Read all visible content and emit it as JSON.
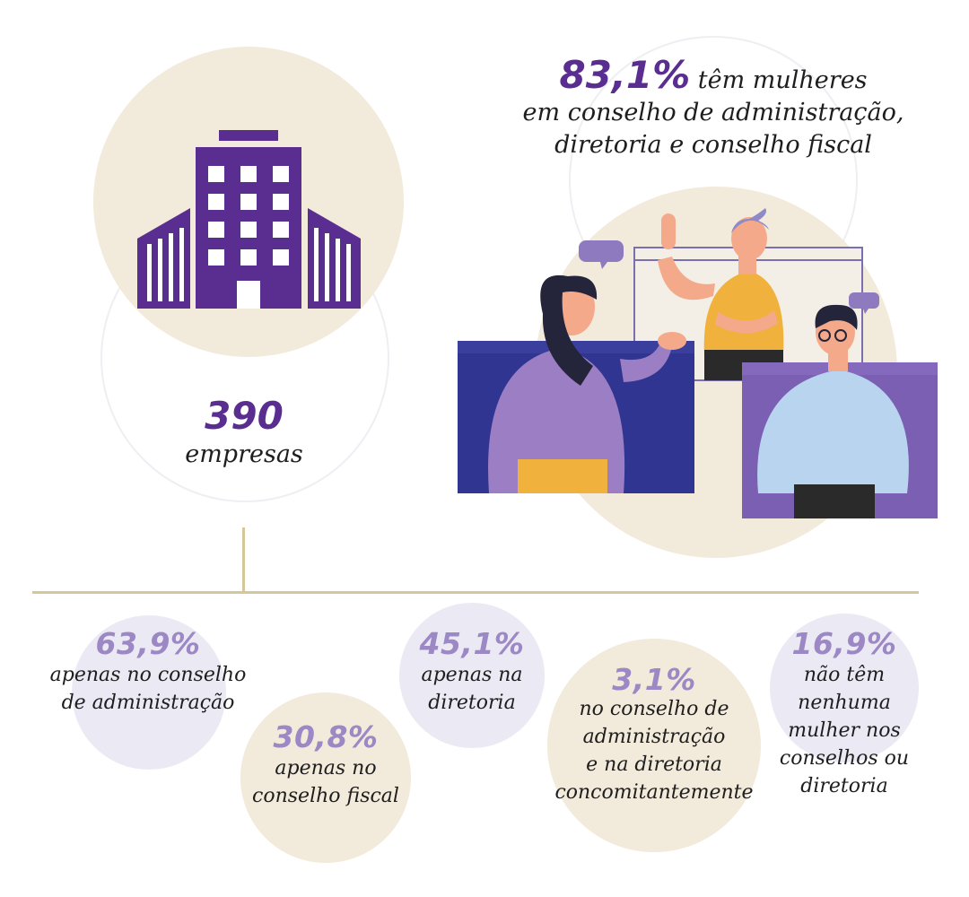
{
  "colors": {
    "primary_purple": "#5a2d91",
    "light_purple": "#9c88c4",
    "beige": "#f2eadb",
    "lavender": "#ebe9f3",
    "gold_line": "#d6c79b"
  },
  "companies": {
    "count": "390",
    "label": "empresas",
    "icon": "building-icon"
  },
  "headline": {
    "percent": "83,1%",
    "line1": "têm mulheres",
    "line2": "em conselho de administração,",
    "line3": "diretoria e conselho fiscal"
  },
  "illustration": {
    "icon": "people-meeting-illustration"
  },
  "stats": [
    {
      "percent": "63,9%",
      "lines": [
        "apenas no conselho",
        "de administração"
      ]
    },
    {
      "percent": "30,8%",
      "lines": [
        "apenas no",
        "conselho fiscal"
      ]
    },
    {
      "percent": "45,1%",
      "lines": [
        "apenas na",
        "diretoria"
      ]
    },
    {
      "percent": "3,1%",
      "lines": [
        "no conselho de",
        "administração",
        "e na diretoria",
        "concomitantemente"
      ]
    },
    {
      "percent": "16,9%",
      "lines": [
        "não têm",
        "nenhuma",
        "mulher nos",
        "conselhos ou",
        "diretoria"
      ]
    }
  ]
}
